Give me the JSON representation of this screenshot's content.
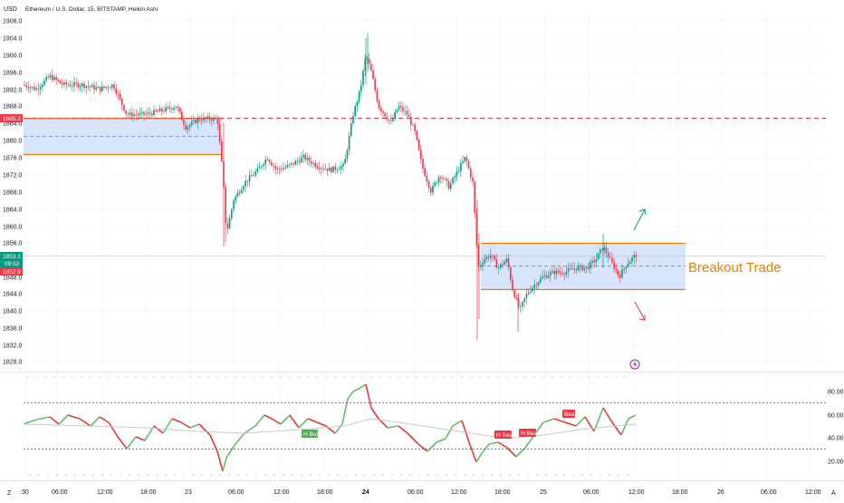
{
  "header": {
    "currency": "USD",
    "symbol": "Ethereum / U.S. Dollar, 15, BITSTAMP, Heikin Ashi"
  },
  "price_axis": {
    "ticks": [
      "1908.0",
      "1904.0",
      "1900.0",
      "1896.0",
      "1892.0",
      "1888.0",
      "1884.0",
      "1880.0",
      "1876.0",
      "1872.0",
      "1868.0",
      "1864.0",
      "1860.0",
      "1856.0",
      "1848.0",
      "1844.0",
      "1840.0",
      "1836.0",
      "1832.0",
      "1828.0"
    ],
    "markers": {
      "resistance": {
        "label": "1885.2",
        "color": "#f23645"
      },
      "last_price": {
        "label": "1853.1",
        "color": "#089981"
      },
      "countdown": {
        "label": "09:52",
        "color": "#089981"
      },
      "low_marker": {
        "label": "1852.9",
        "color": "#f23645"
      }
    }
  },
  "time_axis": {
    "ticks": [
      ":30",
      "06:00",
      "12:00",
      "18:00",
      "23",
      "06:00",
      "12:00",
      "18:00",
      "24",
      "06:00",
      "12:00",
      "18:00",
      "25",
      "06:00",
      "12:00",
      "18:00",
      "26",
      "06:00",
      "12:00"
    ],
    "left_button": "Z",
    "right_button": "A"
  },
  "annotation": {
    "text": "Breakout Trade",
    "color": "#f57c00"
  },
  "indicator": {
    "ticks": [
      "80.00",
      "60.00",
      "40.00",
      "20.00"
    ],
    "labels": {
      "bull": "H Bull",
      "bear1": "H Bear",
      "bear2": "H Bear",
      "bear3": "Bear"
    }
  },
  "colors": {
    "up": "#089981",
    "down": "#f23645",
    "box_fill": "#d6e4fc",
    "box_border": "#f57c00",
    "zone_dash": "#5b7fd9",
    "arrow_up": "#089981",
    "arrow_down": "#f23645"
  },
  "chart_data": {
    "type": "candlestick",
    "y_range": [
      1826,
      1910
    ],
    "price_levels": {
      "resistance_dash": 1885.2,
      "left_zone": {
        "top": 1885.2,
        "bottom": 1877.2,
        "mid": 1881.2
      },
      "right_zone": {
        "top": 1856.8,
        "bottom": 1845.6,
        "mid": 1851.2
      },
      "last_price": 1853.1
    },
    "indicator_range": [
      10,
      95
    ],
    "indicator_levels": [
      70,
      30
    ]
  }
}
